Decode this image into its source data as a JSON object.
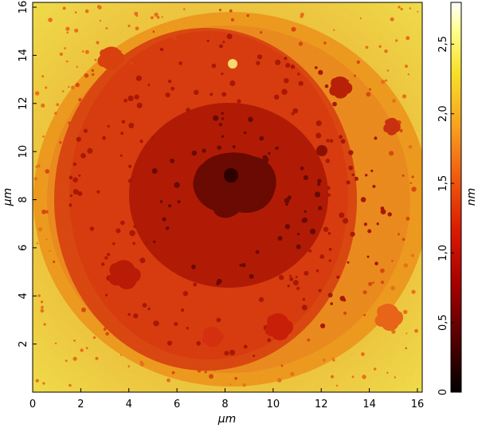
{
  "image": {
    "kind": "AFM height map",
    "description_colors": {
      "low": "#1a0000",
      "mid_low": "#a00000",
      "mid": "#e03000",
      "mid_high": "#f08010",
      "high": "#f8e020",
      "top": "#fffff0"
    }
  },
  "x_axis": {
    "label": "μm",
    "ticks": [
      "0",
      "2",
      "4",
      "6",
      "8",
      "10",
      "12",
      "14",
      "16"
    ],
    "range": [
      0,
      16.2
    ]
  },
  "y_axis": {
    "label": "μm",
    "ticks": [
      "2",
      "4",
      "6",
      "8",
      "10",
      "12",
      "14",
      "16"
    ],
    "range": [
      0,
      16.2
    ]
  },
  "colorbar": {
    "label": "nm",
    "ticks": [
      "0",
      "0,5",
      "1,0",
      "1,5",
      "2,0",
      "2,5"
    ],
    "range": [
      0,
      2.8
    ],
    "colors": [
      "#000000",
      "#5a0000",
      "#b00000",
      "#e02000",
      "#f06010",
      "#f8a018",
      "#f8e028",
      "#ffffa0",
      "#ffffff"
    ]
  }
}
